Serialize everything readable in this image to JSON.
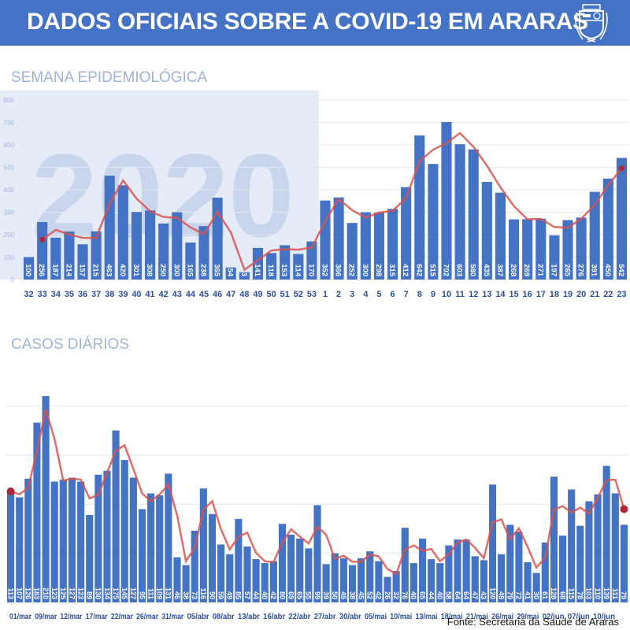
{
  "header": {
    "title": "DADOS OFICIAIS SOBRE A COVID-19 EM ARARAS",
    "emblem": "coat-of-arms"
  },
  "source": "Fonte: Secretaria da Saúde de Araras",
  "colors": {
    "header": "#4472c4",
    "bar": "#4472c4",
    "line": "#d9534f",
    "title": "#9fb3d8"
  },
  "chart_data": [
    {
      "type": "bar",
      "title": "SEMANA EPIDEMIOLÓGICA",
      "watermark": "2020",
      "categories": [
        "32",
        "33",
        "34",
        "35",
        "36",
        "37",
        "38",
        "39",
        "40",
        "41",
        "42",
        "43",
        "44",
        "45",
        "46",
        "47",
        "48",
        "49",
        "50",
        "51",
        "52",
        "53",
        "1",
        "2",
        "3",
        "4",
        "5",
        "6",
        "7",
        "8",
        "9",
        "10",
        "11",
        "12",
        "13",
        "14",
        "15",
        "16",
        "17",
        "18",
        "19",
        "20",
        "21",
        "22",
        "23"
      ],
      "values": [
        100,
        256,
        187,
        214,
        157,
        215,
        463,
        420,
        301,
        308,
        250,
        300,
        165,
        238,
        365,
        54,
        33,
        141,
        118,
        153,
        114,
        170,
        352,
        366,
        252,
        300,
        298,
        315,
        412,
        642,
        515,
        702,
        603,
        580,
        435,
        387,
        268,
        269,
        271,
        197,
        265,
        276,
        391,
        450,
        542
      ],
      "trend": "2-period moving average",
      "ylim": [
        0,
        800
      ],
      "yticks": [
        0,
        100,
        200,
        300,
        400,
        500,
        600,
        700,
        800
      ],
      "grid": true
    },
    {
      "type": "bar",
      "title": "CASOS DIÁRIOS",
      "values": [
        113,
        107,
        126,
        183,
        210,
        123,
        125,
        127,
        123,
        89,
        130,
        134,
        175,
        145,
        127,
        95,
        111,
        109,
        131,
        46,
        38,
        73,
        116,
        90,
        59,
        49,
        85,
        57,
        44,
        40,
        42,
        80,
        69,
        65,
        55,
        99,
        39,
        50,
        45,
        38,
        45,
        52,
        42,
        26,
        32,
        76,
        40,
        65,
        44,
        40,
        58,
        64,
        64,
        47,
        43,
        120,
        49,
        79,
        72,
        41,
        30,
        61,
        128,
        68,
        115,
        78,
        103,
        110,
        139,
        111,
        79
      ],
      "xtick_labels": [
        "01/mar",
        "09/mar",
        "12/mar",
        "17/mar",
        "22/mar",
        "26/mar",
        "31/mar",
        "05/abr",
        "08/abr",
        "13/abr",
        "16/abr",
        "22/abr",
        "27/abr",
        "30/abr",
        "05/mai",
        "10/mai",
        "13/mai",
        "18/mai",
        "21/mai",
        "26/mai",
        "29/mai",
        "02/jun",
        "07/jun",
        "10/jun"
      ],
      "trend": "2-period moving average",
      "ylim": [
        0,
        210
      ],
      "grid": true
    }
  ]
}
